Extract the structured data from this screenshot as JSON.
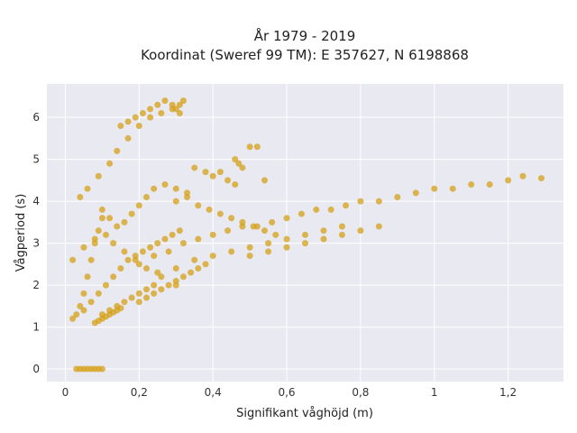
{
  "chart_data": {
    "type": "scatter",
    "title": "År 1979 - 2019",
    "subtitle": "Koordinat (Sweref 99 TM): E 357627, N 6198868",
    "xlabel": "Signifikant våghöjd (m)",
    "ylabel": "Vågperiod (s)",
    "xlim": [
      -0.05,
      1.35
    ],
    "ylim": [
      -0.3,
      6.8
    ],
    "xticks": [
      0,
      0.2,
      0.4,
      0.6,
      0.8,
      1,
      1.2
    ],
    "xtick_labels": [
      "0",
      "0,2",
      "0,4",
      "0,6",
      "0,8",
      "1",
      "1,2"
    ],
    "yticks": [
      0,
      1,
      2,
      3,
      4,
      5,
      6
    ],
    "ytick_labels": [
      "0",
      "1",
      "2",
      "3",
      "4",
      "5",
      "6"
    ],
    "grid": true,
    "point_color": "#d4a017",
    "plot_bg": "#e9e9f1",
    "series": [
      {
        "x": [
          0.02,
          0.03,
          0.04,
          0.05,
          0.06,
          0.07,
          0.08,
          0.09,
          0.1,
          0.02,
          0.05,
          0.08,
          0.11,
          0.13,
          0.16,
          0.19,
          0.22,
          0.26,
          0.3,
          0.04,
          0.06,
          0.09,
          0.12,
          0.14,
          0.17,
          0.2,
          0.23,
          0.26,
          0.29,
          0.31,
          0.1,
          0.12,
          0.14,
          0.16,
          0.18,
          0.2,
          0.22,
          0.24,
          0.27,
          0.3,
          0.33,
          0.05,
          0.07,
          0.09,
          0.11,
          0.13,
          0.15,
          0.17,
          0.19,
          0.21,
          0.23,
          0.25,
          0.27,
          0.29,
          0.31,
          0.15,
          0.17,
          0.19,
          0.21,
          0.23,
          0.25,
          0.27,
          0.29,
          0.3,
          0.31,
          0.32,
          0.2,
          0.24,
          0.28,
          0.32,
          0.36,
          0.4,
          0.44,
          0.48,
          0.52,
          0.56,
          0.6,
          0.64,
          0.68,
          0.72,
          0.76,
          0.8,
          0.85,
          0.9,
          0.95,
          1.0,
          1.05,
          1.1,
          1.15,
          1.2,
          1.24,
          1.29,
          0.25,
          0.3,
          0.35,
          0.4,
          0.45,
          0.5,
          0.55,
          0.6,
          0.65,
          0.7,
          0.75,
          0.3,
          0.33,
          0.36,
          0.39,
          0.42,
          0.45,
          0.48,
          0.51,
          0.54,
          0.57,
          0.4,
          0.42,
          0.44,
          0.46,
          0.48,
          0.5,
          0.52,
          0.54,
          0.46,
          0.47,
          0.35,
          0.38,
          0.08,
          0.09,
          0.1,
          0.11,
          0.12,
          0.13,
          0.14,
          0.15,
          0.1,
          0.12,
          0.14,
          0.16,
          0.18,
          0.2,
          0.22,
          0.24,
          0.2,
          0.22,
          0.24,
          0.26,
          0.28,
          0.3,
          0.32,
          0.34,
          0.36,
          0.38,
          0.5,
          0.55,
          0.6,
          0.65,
          0.7,
          0.75,
          0.8,
          0.85,
          0.03,
          0.04,
          0.05,
          0.06,
          0.07,
          0.08,
          0.09,
          0.1
        ],
        "y": [
          1.2,
          1.3,
          1.5,
          1.8,
          2.2,
          2.6,
          3.0,
          3.3,
          3.6,
          2.6,
          2.9,
          3.1,
          3.2,
          3.0,
          2.8,
          2.6,
          2.4,
          2.2,
          2.0,
          4.1,
          4.3,
          4.6,
          4.9,
          5.2,
          5.5,
          5.8,
          6.0,
          6.1,
          6.2,
          6.3,
          3.8,
          3.6,
          3.4,
          3.5,
          3.7,
          3.9,
          4.1,
          4.3,
          4.4,
          4.3,
          4.2,
          1.4,
          1.6,
          1.8,
          2.0,
          2.2,
          2.4,
          2.6,
          2.7,
          2.8,
          2.9,
          3.0,
          3.1,
          3.2,
          3.3,
          5.8,
          5.9,
          6.0,
          6.1,
          6.2,
          6.3,
          6.4,
          6.3,
          6.2,
          6.1,
          6.4,
          2.5,
          2.7,
          2.8,
          3.0,
          3.1,
          3.2,
          3.3,
          3.4,
          3.4,
          3.5,
          3.6,
          3.7,
          3.8,
          3.8,
          3.9,
          4.0,
          4.0,
          4.1,
          4.2,
          4.3,
          4.3,
          4.4,
          4.4,
          4.5,
          4.6,
          4.55,
          2.3,
          2.4,
          2.6,
          2.7,
          2.8,
          2.9,
          3.0,
          3.1,
          3.2,
          3.3,
          3.4,
          4.0,
          4.1,
          3.9,
          3.8,
          3.7,
          3.6,
          3.5,
          3.4,
          3.3,
          3.2,
          4.6,
          4.7,
          4.5,
          4.4,
          4.8,
          5.3,
          5.3,
          4.5,
          5.0,
          4.9,
          4.8,
          4.7,
          1.1,
          1.15,
          1.2,
          1.25,
          1.3,
          1.35,
          1.4,
          1.45,
          1.3,
          1.4,
          1.5,
          1.6,
          1.7,
          1.8,
          1.9,
          2.0,
          1.6,
          1.7,
          1.8,
          1.9,
          2.0,
          2.1,
          2.2,
          2.3,
          2.4,
          2.5,
          2.7,
          2.8,
          2.9,
          3.0,
          3.1,
          3.2,
          3.3,
          3.4,
          0,
          0,
          0,
          0,
          0,
          0,
          0,
          0
        ]
      }
    ]
  }
}
